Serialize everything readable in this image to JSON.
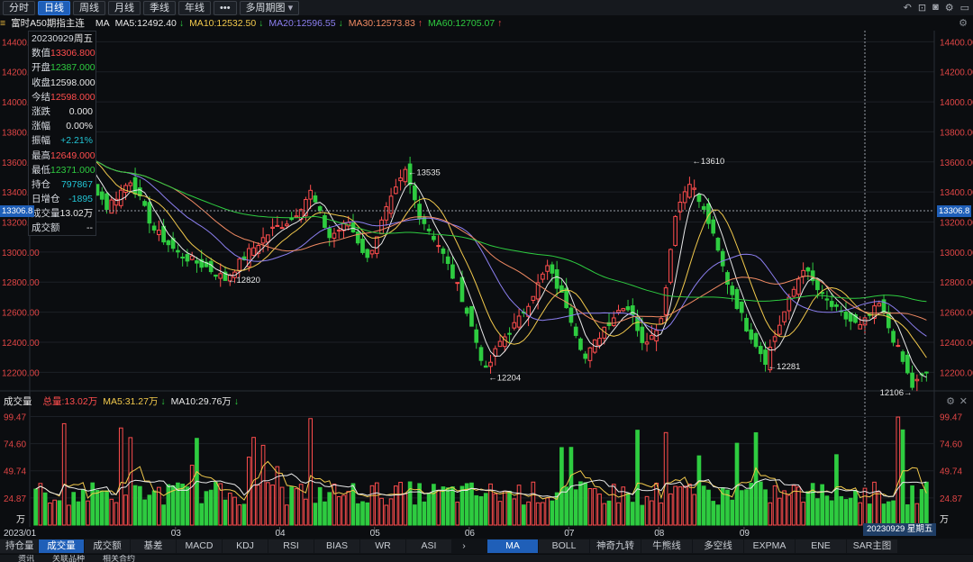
{
  "toolbar": {
    "tabs": [
      "分时",
      "日线",
      "周线",
      "月线",
      "季线",
      "年线",
      "•••",
      "多周期图"
    ],
    "active_tab": 1
  },
  "ma_header": {
    "symbol": "富时A50期指主连",
    "ma_label": "MA",
    "ma5": "MA5:12492.40",
    "ma10": "MA10:12532.50",
    "ma20": "MA20:12596.55",
    "ma30": "MA30:12573.83",
    "ma60": "MA60:12705.07",
    "colors": {
      "ma5": "#e8e8e8",
      "ma10": "#f2c94c",
      "ma20": "#8c7ff0",
      "ma30": "#f08a63",
      "ma60": "#2ecc40"
    }
  },
  "info_panel": [
    {
      "k": "20230929",
      "v": "周五",
      "color": "#e8e8e8"
    },
    {
      "k": "数值",
      "v": "13306.800",
      "color": "#ff4d4d"
    },
    {
      "k": "开盘",
      "v": "12387.000",
      "color": "#2ecc40"
    },
    {
      "k": "收盘",
      "v": "12598.000",
      "color": "#e8e8e8"
    },
    {
      "k": "今结",
      "v": "12598.000",
      "color": "#ff4d4d"
    },
    {
      "k": "涨跌",
      "v": "0.000",
      "color": "#e8e8e8"
    },
    {
      "k": "涨幅",
      "v": "0.00%",
      "color": "#e8e8e8"
    },
    {
      "k": "振幅",
      "v": "+2.21%",
      "color": "#22c4d4"
    },
    {
      "k": "最高",
      "v": "12649.000",
      "color": "#ff4d4d"
    },
    {
      "k": "最低",
      "v": "12371.000",
      "color": "#2ecc40"
    },
    {
      "k": "持仓",
      "v": "797867",
      "color": "#22c4d4"
    },
    {
      "k": "日增仓",
      "v": "-1895",
      "color": "#22c4d4"
    },
    {
      "k": "成交量",
      "v": "13.02万",
      "color": "#e8e8e8"
    },
    {
      "k": "成交额",
      "v": "--",
      "color": "#e8e8e8"
    }
  ],
  "price_axis": {
    "ticks": [
      "14400.00",
      "14200.00",
      "14000.00",
      "13800.00",
      "13600.00",
      "13400.00",
      "13200.00",
      "13000.00",
      "12800.00",
      "12600.00",
      "12400.00",
      "12200.00"
    ],
    "crosshair_value": "13306.8"
  },
  "annotations": [
    {
      "label": "←13535"
    },
    {
      "label": "←13610"
    },
    {
      "label": "←12820"
    },
    {
      "label": "←12204"
    },
    {
      "label": "←12281"
    },
    {
      "label": "12106→"
    }
  ],
  "volume_header": {
    "title": "成交量",
    "total": "总量:13.02万",
    "ma5": "MA5:31.27万",
    "ma10": "MA10:29.76万"
  },
  "volume_axis": {
    "ticks": [
      "99.47",
      "74.60",
      "49.74",
      "24.87"
    ],
    "unit": "万"
  },
  "x_axis": {
    "labels": [
      "2023/01",
      "03",
      "04",
      "05",
      "06",
      "07",
      "08",
      "09"
    ]
  },
  "crosshair_date": "20230929 星期五",
  "indicator_tabs_left": [
    "持仓量",
    "成交量",
    "成交额",
    "基差",
    "MACD",
    "KDJ",
    "RSI",
    "BIAS",
    "WR",
    "ASI"
  ],
  "indicator_tabs_left_active": 1,
  "indicator_tabs_right": [
    "MA",
    "BOLL",
    "神奇九转",
    "牛熊线",
    "多空线",
    "EXPMA",
    "ENE",
    "SAR主图"
  ],
  "indicator_tabs_right_active": 0,
  "footer_tabs": [
    "资讯",
    "关联品种",
    "相关合约"
  ],
  "chart_data": {
    "type": "candlestick",
    "ylim": [
      12100,
      14450
    ],
    "colors": {
      "up": "#ff4d4d",
      "down": "#2ecc40"
    },
    "month_starts": [
      0,
      30,
      52,
      72,
      92,
      113,
      132,
      150
    ],
    "anchors": [
      [
        0,
        13600
      ],
      [
        6,
        13720
      ],
      [
        10,
        13560
      ],
      [
        15,
        13300
      ],
      [
        20,
        13480
      ],
      [
        25,
        13150
      ],
      [
        30,
        12990
      ],
      [
        36,
        12900
      ],
      [
        40,
        12820
      ],
      [
        45,
        13000
      ],
      [
        50,
        13150
      ],
      [
        54,
        13220
      ],
      [
        58,
        13400
      ],
      [
        62,
        13100
      ],
      [
        66,
        13200
      ],
      [
        70,
        12950
      ],
      [
        74,
        13280
      ],
      [
        78,
        13535
      ],
      [
        81,
        13250
      ],
      [
        85,
        13050
      ],
      [
        90,
        12700
      ],
      [
        95,
        12204
      ],
      [
        98,
        12400
      ],
      [
        102,
        12550
      ],
      [
        108,
        12900
      ],
      [
        112,
        12650
      ],
      [
        116,
        12290
      ],
      [
        120,
        12500
      ],
      [
        124,
        12650
      ],
      [
        126,
        12600
      ],
      [
        128,
        12380
      ],
      [
        132,
        12550
      ],
      [
        135,
        13260
      ],
      [
        138,
        13480
      ],
      [
        142,
        13200
      ],
      [
        146,
        12800
      ],
      [
        150,
        12500
      ],
      [
        154,
        12281
      ],
      [
        158,
        12600
      ],
      [
        162,
        12900
      ],
      [
        166,
        12700
      ],
      [
        170,
        12580
      ],
      [
        174,
        12500
      ],
      [
        178,
        12650
      ],
      [
        182,
        12350
      ],
      [
        185,
        12106
      ],
      [
        188,
        12200
      ]
    ],
    "volume_ylim": [
      0,
      104
    ]
  }
}
